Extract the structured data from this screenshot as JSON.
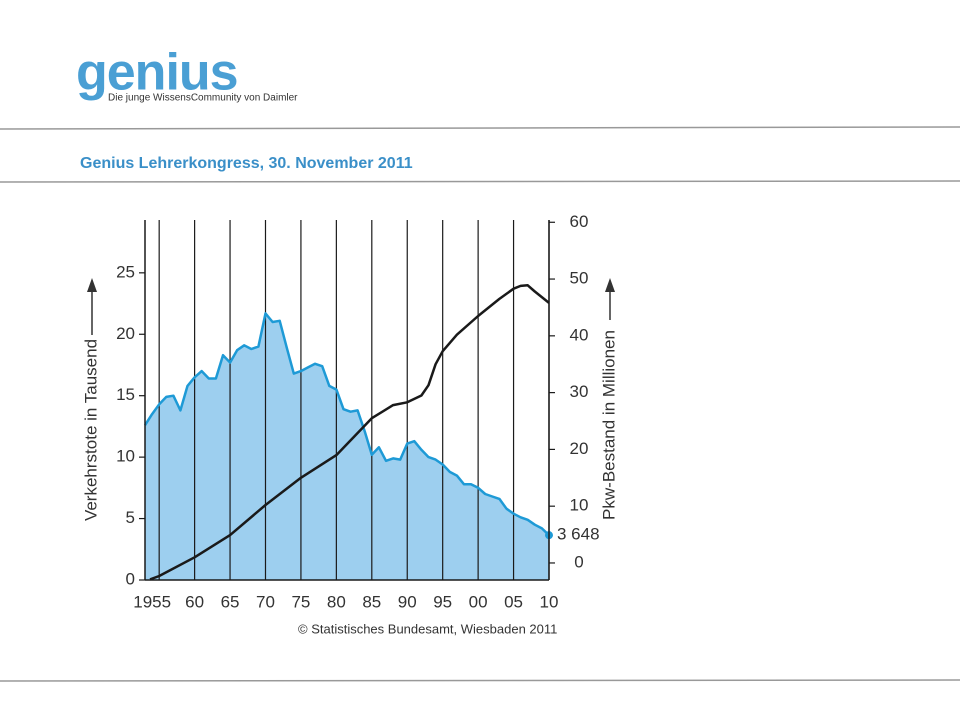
{
  "header": {
    "logo": "genius",
    "tagline": "Die junge WissensCommunity von Daimler",
    "title": "Genius Lehrerkongress, 30. November 2011"
  },
  "chart_data": {
    "type": "area-line",
    "y_label": "Verkehrstote in Tausend",
    "y2_label": "Pkw-Bestand in Millionen",
    "source": "© Statistisches Bundesamt, Wiesbaden 2011",
    "xlim": [
      1953,
      2010
    ],
    "xticks": [
      1955,
      {
        "value": 1960,
        "label": "60"
      },
      {
        "value": 1965,
        "label": "65"
      },
      {
        "value": 1970,
        "label": "70"
      },
      {
        "value": 1975,
        "label": "75"
      },
      {
        "value": 1980,
        "label": "80"
      },
      {
        "value": 1985,
        "label": "85"
      },
      {
        "value": 1990,
        "label": "90"
      },
      {
        "value": 1995,
        "label": "95"
      },
      {
        "value": 2000,
        "label": "00"
      },
      {
        "value": 2005,
        "label": "05"
      },
      {
        "value": 2010,
        "label": "10"
      }
    ],
    "ylim": [
      0,
      29.3
    ],
    "yticks": [
      0,
      5,
      10,
      15,
      20,
      25
    ],
    "y2lim": [
      -3,
      60.4
    ],
    "y2ticks": [
      0,
      10,
      20,
      30,
      40,
      50,
      60
    ],
    "grid": true,
    "series": [
      {
        "name": "Verkehrstote",
        "axis": "y",
        "color": "#1e9ad6",
        "fill": "#9dcfef",
        "x": [
          1953,
          1954,
          1955,
          1956,
          1957,
          1958,
          1959,
          1960,
          1961,
          1962,
          1963,
          1964,
          1965,
          1966,
          1967,
          1968,
          1969,
          1970,
          1971,
          1972,
          1973,
          1974,
          1975,
          1976,
          1977,
          1978,
          1979,
          1980,
          1981,
          1982,
          1983,
          1984,
          1985,
          1986,
          1987,
          1988,
          1989,
          1990,
          1991,
          1992,
          1993,
          1994,
          1995,
          1996,
          1997,
          1998,
          1999,
          2000,
          2001,
          2002,
          2003,
          2004,
          2005,
          2006,
          2007,
          2008,
          2009,
          2010
        ],
        "values": [
          12.6,
          13.5,
          14.3,
          14.9,
          15.0,
          13.8,
          15.8,
          16.5,
          17.0,
          16.4,
          16.4,
          18.3,
          17.7,
          18.7,
          19.1,
          18.8,
          19.0,
          21.7,
          21.0,
          21.1,
          18.9,
          16.8,
          17.0,
          17.3,
          17.6,
          17.4,
          15.8,
          15.5,
          13.9,
          13.7,
          13.8,
          12.1,
          10.2,
          10.8,
          9.7,
          9.9,
          9.8,
          11.1,
          11.3,
          10.6,
          10.0,
          9.8,
          9.4,
          8.8,
          8.5,
          7.8,
          7.8,
          7.5,
          7.0,
          6.8,
          6.6,
          5.8,
          5.4,
          5.1,
          4.9,
          4.5,
          4.2,
          3.648
        ],
        "value_labels": [
          null,
          null,
          null,
          null,
          null,
          null,
          null,
          null,
          null,
          null,
          null,
          null,
          null,
          null,
          null,
          null,
          null,
          null,
          null,
          null,
          null,
          null,
          null,
          null,
          null,
          null,
          null,
          null,
          null,
          null,
          null,
          null,
          null,
          null,
          null,
          null,
          null,
          null,
          null,
          null,
          null,
          null,
          null,
          null,
          null,
          null,
          null,
          null,
          null,
          null,
          null,
          null,
          null,
          null,
          null,
          null,
          null,
          "3 648"
        ]
      },
      {
        "name": "Pkw-Bestand",
        "axis": "y2",
        "color": "#1a1a1a",
        "x": [
          1953.7,
          1955,
          1960,
          1965,
          1970,
          1975,
          1980,
          1985,
          1988,
          1990,
          1992,
          1993,
          1994,
          1995,
          1997,
          2000,
          2003,
          2005,
          2006,
          2007,
          2008,
          2010
        ],
        "values": [
          -2.9,
          -2.3,
          1.0,
          4.9,
          10.2,
          15.0,
          19.0,
          25.5,
          27.8,
          28.3,
          29.5,
          31.3,
          35.0,
          37.3,
          40.2,
          43.5,
          46.5,
          48.3,
          48.8,
          48.9,
          47.8,
          45.8
        ]
      }
    ]
  }
}
